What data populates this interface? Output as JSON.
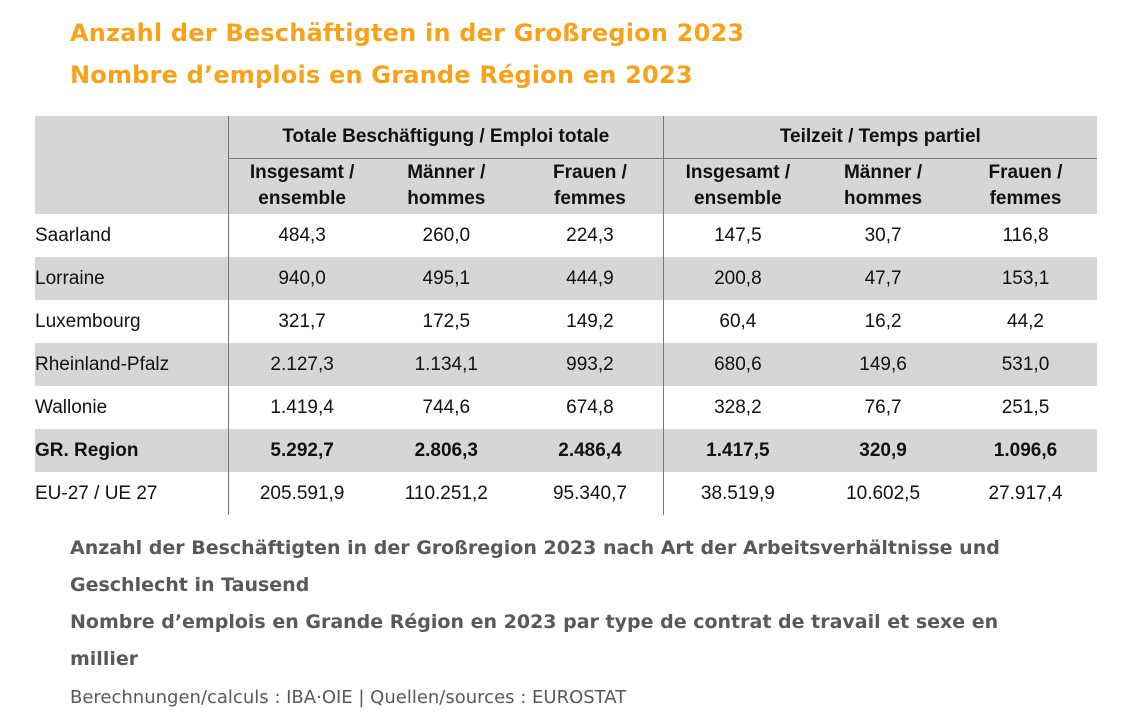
{
  "title_de": "Anzahl der Beschäftigten in der Großregion 2023",
  "title_fr": "Nombre d’emplois en Grande Région en 2023",
  "colors": {
    "title": "#f7a21b",
    "header_bg": "#d6d6d6",
    "caption_text": "#595959"
  },
  "chart_data": {
    "type": "table",
    "column_groups": [
      "Totale Beschäftigung / Emploi totale",
      "Teilzeit / Temps partiel"
    ],
    "columns": [
      [
        "Insgesamt /",
        "ensemble"
      ],
      [
        "Männer /",
        "hommes"
      ],
      [
        "Frauen /",
        "femmes"
      ],
      [
        "Insgesamt /",
        "ensemble"
      ],
      [
        "Männer /",
        "hommes"
      ],
      [
        "Frauen /",
        "femmes"
      ]
    ],
    "rows": [
      {
        "label": "Saarland",
        "values": [
          "484,3",
          "260,0",
          "224,3",
          "147,5",
          "30,7",
          "116,8"
        ]
      },
      {
        "label": "Lorraine",
        "values": [
          "940,0",
          "495,1",
          "444,9",
          "200,8",
          "47,7",
          "153,1"
        ]
      },
      {
        "label": "Luxembourg",
        "values": [
          "321,7",
          "172,5",
          "149,2",
          "60,4",
          "16,2",
          "44,2"
        ]
      },
      {
        "label": "Rheinland-Pfalz",
        "values": [
          "2.127,3",
          "1.134,1",
          "993,2",
          "680,6",
          "149,6",
          "531,0"
        ]
      },
      {
        "label": "Wallonie",
        "values": [
          "1.419,4",
          "744,6",
          "674,8",
          "328,2",
          "76,7",
          "251,5"
        ]
      },
      {
        "label": "GR. Region",
        "values": [
          "5.292,7",
          "2.806,3",
          "2.486,4",
          "1.417,5",
          "320,9",
          "1.096,6"
        ]
      },
      {
        "label": "EU-27 / UE 27",
        "values": [
          "205.591,9",
          "110.251,2",
          "95.340,7",
          "38.519,9",
          "10.602,5",
          "27.917,4"
        ]
      }
    ]
  },
  "caption": {
    "lines": [
      "Anzahl der Beschäftigten in der Großregion 2023 nach Art der Arbeitsverhältnisse und",
      "Geschlecht in Tausend",
      "Nombre d’emplois en Grande Région en 2023 par type de contrat de travail et sexe en",
      "millier"
    ],
    "source": "Berechnungen/calculs : IBA·OIE | Quellen/sources : EUROSTAT"
  }
}
